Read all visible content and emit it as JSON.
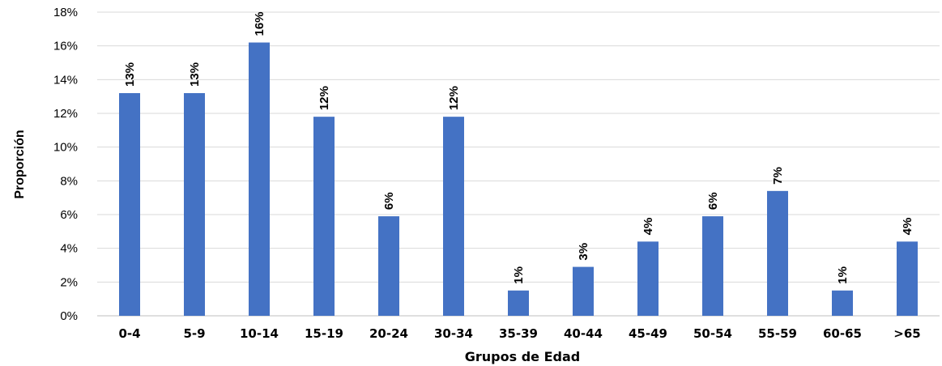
{
  "chart_data": {
    "type": "bar",
    "categories": [
      "0-4",
      "5-9",
      "10-14",
      "15-19",
      "20-24",
      "30-34",
      "35-39",
      "40-44",
      "45-49",
      "50-54",
      "55-59",
      "60-65",
      ">65"
    ],
    "values": [
      13.2,
      13.2,
      16.2,
      11.8,
      5.9,
      11.8,
      1.5,
      2.9,
      4.4,
      5.9,
      7.4,
      1.5,
      4.4
    ],
    "data_labels": [
      "13%",
      "13%",
      "16%",
      "12%",
      "6%",
      "12%",
      "1%",
      "3%",
      "4%",
      "6%",
      "7%",
      "1%",
      "4%"
    ],
    "y_ticks": [
      "0%",
      "2%",
      "4%",
      "6%",
      "8%",
      "10%",
      "12%",
      "14%",
      "16%",
      "18%"
    ],
    "ylim": [
      0,
      18
    ],
    "xlabel": "Grupos de Edad",
    "ylabel": "Proporción",
    "grid": true,
    "bar_color": "#4472c4"
  }
}
